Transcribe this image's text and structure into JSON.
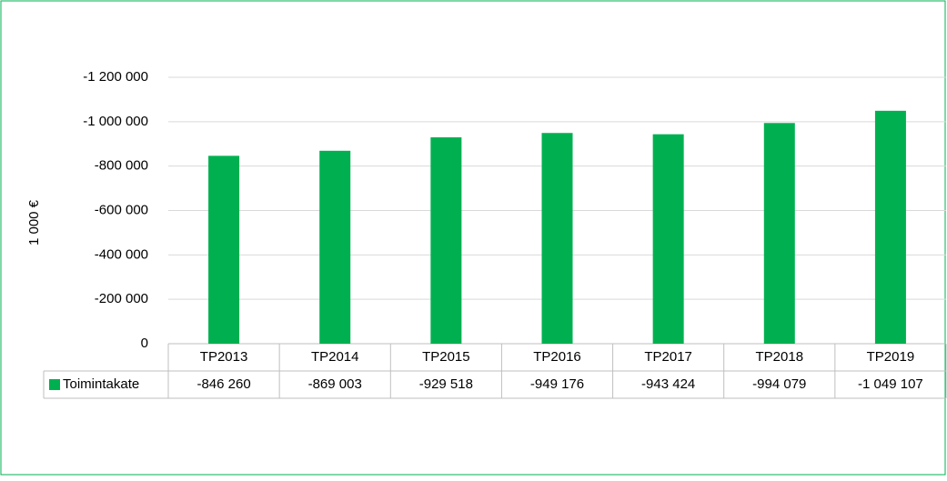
{
  "chart_data": {
    "type": "bar",
    "y_label": "1 000 €",
    "categories": [
      "TP2013",
      "TP2014",
      "TP2015",
      "TP2016",
      "TP2017",
      "TP2018",
      "TP2019"
    ],
    "series": [
      {
        "name": "Toimintakate",
        "color": "#00b050",
        "values": [
          -846260,
          -869003,
          -929518,
          -949176,
          -943424,
          -994079,
          -1049107
        ],
        "value_labels": [
          "-846 260",
          "-869 003",
          "-929 518",
          "-949 176",
          "-943 424",
          "-994 079",
          "-1 049 107"
        ]
      }
    ],
    "ylim": [
      0,
      -1200000
    ],
    "yticks": [
      0,
      {
        "value": -200000,
        "label": "-200 000"
      },
      {
        "value": -400000,
        "label": "-400 000"
      },
      {
        "value": -600000,
        "label": "-600 000"
      },
      {
        "value": -800000,
        "label": "-800 000"
      },
      {
        "value": -1000000,
        "label": "-1 000 000"
      },
      {
        "value": -1200000,
        "label": "-1 200 000"
      }
    ],
    "grid": true
  }
}
